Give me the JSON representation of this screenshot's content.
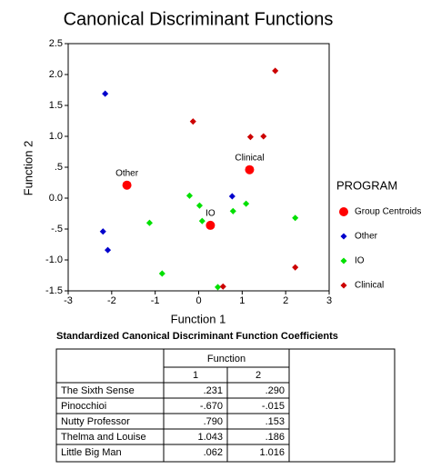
{
  "chart_data": {
    "type": "scatter",
    "title": "Canonical Discriminant Functions",
    "x_label": "Function 1",
    "y_label": "Function 2",
    "legend_title": "PROGRAM",
    "legend_position": "right",
    "xlim": [
      -3,
      3
    ],
    "xticks": [
      -3,
      -2,
      -1,
      0,
      1,
      2,
      3
    ],
    "ylim": [
      -1.5,
      2.5
    ],
    "yticks": [
      2.5,
      {
        "value": 2,
        "label": "2.0"
      },
      1.5,
      {
        "value": 1,
        "label": "1.0"
      },
      {
        "value": 0.5,
        "label": ".5"
      },
      {
        "value": 0,
        "label": "0.0"
      },
      {
        "value": -0.5,
        "label": "-.5"
      },
      {
        "value": -1,
        "label": "-1.0"
      },
      -1.5
    ],
    "series": [
      {
        "name": "Group Centroids",
        "color": "#ff0000",
        "size": 5,
        "x": [
          -1.65,
          1.17,
          0.27
        ],
        "values": [
          0.21,
          0.46,
          -0.44
        ],
        "labels": [
          "Other",
          "Clinical",
          "IO"
        ]
      },
      {
        "name": "Other",
        "color": "#0000cc",
        "size": 2.5,
        "x": [
          -2.15,
          -2.2,
          -2.09,
          0.77
        ],
        "values": [
          1.69,
          -0.54,
          -0.84,
          0.03
        ]
      },
      {
        "name": "IO",
        "color": "#00e000",
        "size": 2.5,
        "x": [
          -0.21,
          0.02,
          -1.13,
          -0.84,
          0.08,
          0.79,
          1.09,
          2.22,
          0.44
        ],
        "values": [
          0.04,
          -0.12,
          -0.4,
          -1.22,
          -0.37,
          -0.21,
          -0.09,
          -0.32,
          -1.44
        ]
      },
      {
        "name": "Clinical",
        "color": "#cc0000",
        "size": 2.5,
        "x": [
          1.76,
          -0.13,
          1.19,
          1.49,
          2.22,
          0.56
        ],
        "values": [
          2.06,
          1.24,
          0.99,
          1.0,
          -1.12,
          -1.43
        ]
      }
    ]
  },
  "table": {
    "title": "Standardized Canonical Discriminant Function Coefficients",
    "group_header": "Function",
    "columns": [
      "1",
      "2"
    ],
    "rows": [
      [
        "The Sixth Sense",
        ".231",
        ".290"
      ],
      [
        "Pinocchioi",
        "-.670",
        "-.015"
      ],
      [
        "Nutty Professor",
        ".790",
        ".153"
      ],
      [
        "Thelma and Louise",
        "1.043",
        ".186"
      ],
      [
        "Little Big Man",
        ".062",
        "1.016"
      ]
    ]
  }
}
